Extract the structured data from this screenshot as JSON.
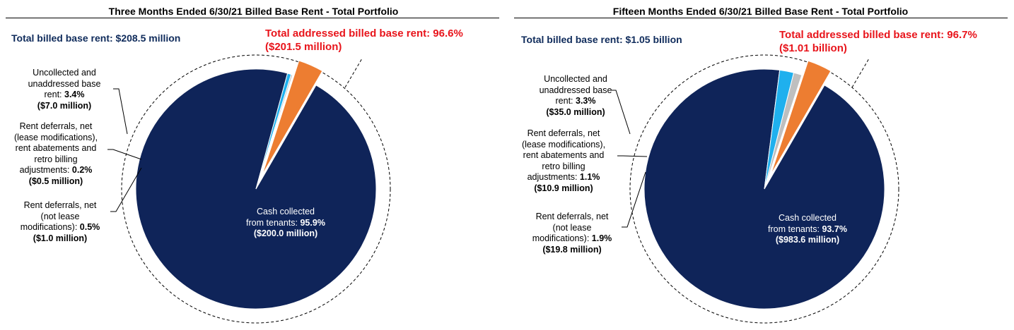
{
  "colors": {
    "cash": "#0f2459",
    "uncollected": "#ed7d31",
    "deferrals_lease_mod": "#bfbfbf",
    "deferrals_not_lease_mod": "#1fb0ee",
    "title_text": "#0f2b5b",
    "addressed_text": "#e8141b"
  },
  "panels": [
    {
      "title": "Three Months Ended 6/30/21 Billed Base Rent - Total Portfolio",
      "total_label": "Total billed base rent: $208.5 million",
      "addressed_line1": "Total addressed billed base rent: 96.6%",
      "addressed_line2": "($201.5 million)",
      "labels": {
        "uncollected": {
          "l1": "Uncollected and",
          "l2": "unaddressed base",
          "l3a": "rent: ",
          "l3b": "3.4%",
          "l4": "($7.0 million)"
        },
        "deferrals_lease_mod": {
          "l1": "Rent deferrals, net",
          "l2": "(lease modifications),",
          "l3": "rent abatements and",
          "l4": "retro billing",
          "l5a": "adjustments: ",
          "l5b": "0.2%",
          "l6": "($0.5 million)"
        },
        "deferrals_not_lease_mod": {
          "l1": "Rent deferrals, net",
          "l2": "(not lease",
          "l3a": "modifications): ",
          "l3b": "0.5%",
          "l4": "($1.0 million)"
        },
        "cash": {
          "l1": "Cash collected",
          "l2a": "from tenants: ",
          "l2b": "95.9%",
          "l3": "($200.0 million)"
        }
      }
    },
    {
      "title": "Fifteen Months Ended 6/30/21 Billed Base Rent - Total Portfolio",
      "total_label": "Total billed base rent: $1.05 billion",
      "addressed_line1": "Total addressed billed base rent: 96.7%",
      "addressed_line2": "($1.01 billion)",
      "labels": {
        "uncollected": {
          "l1": "Uncollected and",
          "l2": "unaddressed base",
          "l3a": "rent: ",
          "l3b": "3.3%",
          "l4": "($35.0 million)"
        },
        "deferrals_lease_mod": {
          "l1": "Rent deferrals, net",
          "l2": "(lease modifications),",
          "l3": "rent abatements and",
          "l4": "retro billing",
          "l5a": "adjustments: ",
          "l5b": "1.1%",
          "l6": "($10.9 million)"
        },
        "deferrals_not_lease_mod": {
          "l1": "Rent deferrals, net",
          "l2": "(not lease",
          "l3a": "modifications): ",
          "l3b": "1.9%",
          "l4": "($19.8 million)"
        },
        "cash": {
          "l1": "Cash collected",
          "l2a": "from tenants: ",
          "l2b": "93.7%",
          "l3": "($983.6 million)"
        }
      }
    }
  ],
  "chart_data": [
    {
      "type": "pie",
      "title": "Three Months Ended 6/30/21 Billed Base Rent - Total Portfolio",
      "categories": [
        "Cash collected from tenants",
        "Rent deferrals, net (not lease modifications)",
        "Rent deferrals, net (lease modifications), rent abatements and retro billing adjustments",
        "Uncollected and unaddressed base rent"
      ],
      "values": [
        95.9,
        0.5,
        0.2,
        3.4
      ],
      "amounts_millions": [
        200.0,
        1.0,
        0.5,
        7.0
      ],
      "exploded": [
        "Uncollected and unaddressed base rent"
      ]
    },
    {
      "type": "pie",
      "title": "Fifteen Months Ended 6/30/21 Billed Base Rent - Total Portfolio",
      "categories": [
        "Cash collected from tenants",
        "Rent deferrals, net (not lease modifications)",
        "Rent deferrals, net (lease modifications), rent abatements and retro billing adjustments",
        "Uncollected and unaddressed base rent"
      ],
      "values": [
        93.7,
        1.9,
        1.1,
        3.3
      ],
      "amounts_millions": [
        983.6,
        19.8,
        10.9,
        35.0
      ],
      "exploded": [
        "Uncollected and unaddressed base rent"
      ]
    }
  ]
}
